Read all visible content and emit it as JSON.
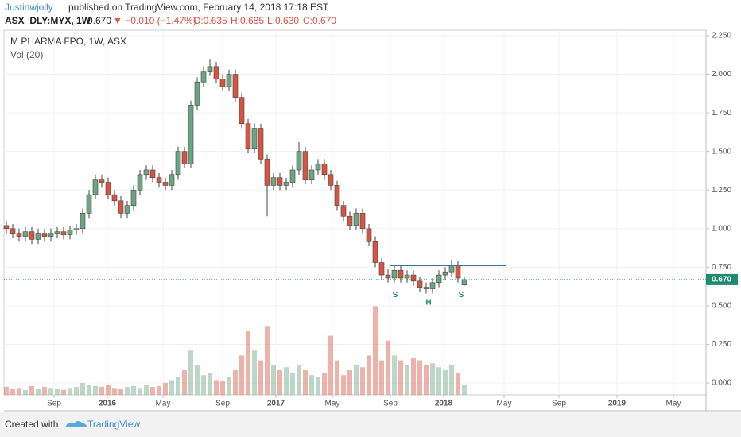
{
  "header": {
    "author": "Justinwjolly",
    "published": "published on TradingView.com, February 14, 2018 17:18 EST",
    "symbol": "ASX_DLY:MYX, 1W",
    "price": "0.670",
    "change": "▼ −0.010 (−1.47%)",
    "open": "O:0.635",
    "high": "H:0.685",
    "low": "L:0.630",
    "close": "C:0.670"
  },
  "chart_data": {
    "type": "candlestick",
    "title": "M PHARMA FPO, 1W, ASX",
    "volume_label": "Vol (20)",
    "up_color": "#6ba583",
    "down_color": "#d75442",
    "x": [
      0,
      2,
      4,
      6,
      8,
      10,
      12,
      14,
      16,
      18,
      20,
      22,
      24,
      26,
      28,
      30,
      32,
      34,
      36,
      38,
      40,
      42,
      44,
      46,
      48,
      50,
      52,
      54,
      56,
      58,
      60,
      62,
      64,
      66,
      68,
      70,
      72,
      74,
      76,
      78,
      80,
      82,
      84,
      86,
      88,
      90,
      92,
      94,
      96,
      98,
      100,
      102,
      104,
      106,
      108,
      110,
      112,
      114,
      116,
      118,
      120,
      122,
      124,
      126,
      128,
      130,
      132,
      134,
      136,
      138,
      140,
      142,
      144
    ],
    "open": [
      1.02,
      1.0,
      0.97,
      0.95,
      0.98,
      0.93,
      0.97,
      0.95,
      0.97,
      0.98,
      0.96,
      0.99,
      1.0,
      1.1,
      1.22,
      1.32,
      1.3,
      1.22,
      1.18,
      1.1,
      1.15,
      1.25,
      1.35,
      1.38,
      1.33,
      1.3,
      1.28,
      1.35,
      1.5,
      1.42,
      1.8,
      1.95,
      2.02,
      2.05,
      1.97,
      1.92,
      2.0,
      1.85,
      1.68,
      1.52,
      1.65,
      1.45,
      1.28,
      1.33,
      1.28,
      1.3,
      1.38,
      1.5,
      1.32,
      1.38,
      1.42,
      1.35,
      1.28,
      1.15,
      1.08,
      1.02,
      1.1,
      1.0,
      0.92,
      0.78,
      0.7,
      0.68,
      0.73,
      0.68,
      0.7,
      0.66,
      0.62,
      0.61,
      0.65,
      0.7,
      0.72,
      0.76,
      0.635
    ],
    "high": [
      1.05,
      1.03,
      1.0,
      1.01,
      1.01,
      1.0,
      1.0,
      1.0,
      1.01,
      1.01,
      1.02,
      1.03,
      1.13,
      1.25,
      1.35,
      1.35,
      1.33,
      1.25,
      1.21,
      1.18,
      1.28,
      1.38,
      1.41,
      1.41,
      1.36,
      1.33,
      1.38,
      1.53,
      1.53,
      1.83,
      1.98,
      2.05,
      2.1,
      2.08,
      2.0,
      2.03,
      2.03,
      1.88,
      1.71,
      1.68,
      1.68,
      1.48,
      1.36,
      1.36,
      1.33,
      1.41,
      1.56,
      1.53,
      1.41,
      1.45,
      1.45,
      1.38,
      1.31,
      1.18,
      1.11,
      1.13,
      1.13,
      1.03,
      0.95,
      0.81,
      0.74,
      0.76,
      0.76,
      0.73,
      0.73,
      0.69,
      0.65,
      0.68,
      0.73,
      0.75,
      0.8,
      0.79,
      0.685
    ],
    "low": [
      0.97,
      0.94,
      0.92,
      0.92,
      0.9,
      0.9,
      0.92,
      0.92,
      0.94,
      0.93,
      0.93,
      0.96,
      0.97,
      1.07,
      1.19,
      1.27,
      1.19,
      1.15,
      1.07,
      1.07,
      1.12,
      1.22,
      1.32,
      1.3,
      1.27,
      1.25,
      1.25,
      1.32,
      1.39,
      1.39,
      1.77,
      1.92,
      1.99,
      1.94,
      1.89,
      1.89,
      1.82,
      1.65,
      1.49,
      1.49,
      1.42,
      1.08,
      1.25,
      1.25,
      1.25,
      1.27,
      1.35,
      1.29,
      1.29,
      1.35,
      1.32,
      1.25,
      1.12,
      1.05,
      0.99,
      0.99,
      0.97,
      0.89,
      0.75,
      0.67,
      0.65,
      0.65,
      0.65,
      0.65,
      0.63,
      0.59,
      0.58,
      0.58,
      0.62,
      0.67,
      0.69,
      0.65,
      0.63
    ],
    "close": [
      1.0,
      0.97,
      0.95,
      0.98,
      0.93,
      0.97,
      0.95,
      0.97,
      0.98,
      0.96,
      0.99,
      1.0,
      1.1,
      1.22,
      1.32,
      1.3,
      1.22,
      1.18,
      1.1,
      1.15,
      1.25,
      1.35,
      1.38,
      1.33,
      1.3,
      1.28,
      1.35,
      1.5,
      1.42,
      1.8,
      1.95,
      2.02,
      2.05,
      1.97,
      1.92,
      2.0,
      1.85,
      1.68,
      1.52,
      1.65,
      1.45,
      1.28,
      1.33,
      1.28,
      1.3,
      1.38,
      1.5,
      1.32,
      1.38,
      1.42,
      1.35,
      1.28,
      1.15,
      1.08,
      1.02,
      1.1,
      1.0,
      0.92,
      0.78,
      0.7,
      0.68,
      0.73,
      0.68,
      0.7,
      0.66,
      0.62,
      0.61,
      0.65,
      0.7,
      0.72,
      0.76,
      0.68,
      0.67
    ],
    "volume": [
      8,
      6,
      7,
      5,
      9,
      6,
      8,
      7,
      6,
      5,
      7,
      8,
      12,
      10,
      9,
      8,
      10,
      7,
      6,
      8,
      9,
      7,
      10,
      8,
      9,
      12,
      15,
      18,
      25,
      45,
      30,
      20,
      22,
      15,
      14,
      18,
      25,
      40,
      65,
      45,
      35,
      70,
      30,
      25,
      28,
      22,
      30,
      25,
      20,
      18,
      22,
      60,
      35,
      20,
      25,
      30,
      28,
      40,
      90,
      35,
      55,
      40,
      35,
      30,
      38,
      35,
      30,
      32,
      28,
      25,
      30,
      22,
      10
    ],
    "xlim": [
      -2,
      220
    ],
    "xticks": [
      {
        "value": 15,
        "label": "Sep"
      },
      {
        "value": 31.75,
        "label": "2016"
      },
      {
        "value": 49.25,
        "label": "May"
      },
      {
        "value": 68,
        "label": "Sep"
      },
      {
        "value": 84.75,
        "label": "2017"
      },
      {
        "value": 102.5,
        "label": "May"
      },
      {
        "value": 120.75,
        "label": "Sep"
      },
      {
        "value": 137.5,
        "label": "2018"
      },
      {
        "value": 156.5,
        "label": "May"
      },
      {
        "value": 173.75,
        "label": "Sep"
      },
      {
        "value": 192,
        "label": "2019"
      },
      {
        "value": 209.75,
        "label": "May"
      }
    ],
    "ylim": [
      -0.077,
      2.286
    ],
    "yticks": [
      {
        "value": 0,
        "label": "0.000"
      },
      {
        "value": 0.25,
        "label": "0.250"
      },
      {
        "value": 0.5,
        "label": "0.500"
      },
      {
        "value": 0.75,
        "label": "0.750"
      },
      {
        "value": 1,
        "label": "1.000"
      },
      {
        "value": 1.25,
        "label": "1.250"
      },
      {
        "value": 1.5,
        "label": "1.500"
      },
      {
        "value": 1.75,
        "label": "1.750"
      },
      {
        "value": 2,
        "label": "2.000"
      },
      {
        "value": 2.25,
        "label": "2.250"
      }
    ],
    "last_price": {
      "value": 0.67,
      "label": "0.670"
    },
    "resistance": {
      "value": 0.76,
      "from": 120.5,
      "to": 157.25,
      "color": "#3a6ea5"
    },
    "annotations": [
      {
        "text": "S",
        "x": 122.25,
        "y": 0.57
      },
      {
        "text": "H",
        "x": 132.75,
        "y": 0.52
      },
      {
        "text": "S",
        "x": 143,
        "y": 0.57
      }
    ],
    "annotation_color": "#1e8a6e",
    "grid": true
  },
  "footer": {
    "created": "Created with",
    "brand": "TradingView"
  }
}
